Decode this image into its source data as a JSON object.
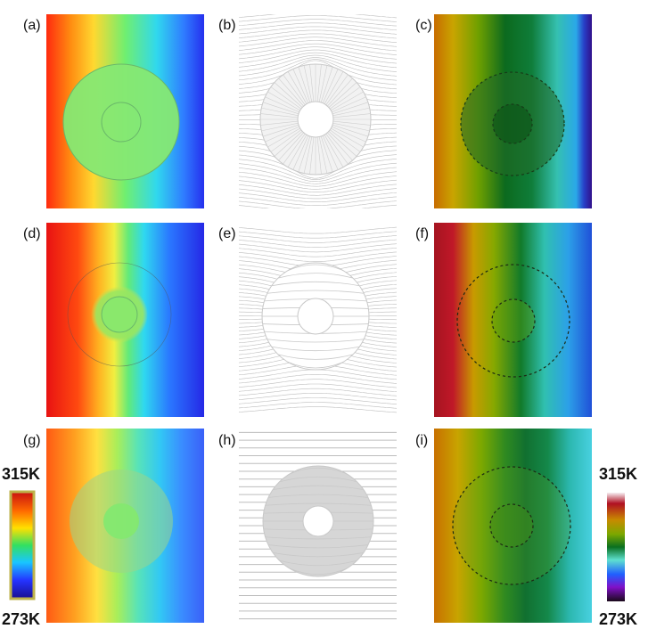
{
  "panels": {
    "a": {
      "label": "(a)"
    },
    "b": {
      "label": "(b)"
    },
    "c": {
      "label": "(c)"
    },
    "d": {
      "label": "(d)"
    },
    "e": {
      "label": "(e)"
    },
    "f": {
      "label": "(f)"
    },
    "g": {
      "label": "(g)"
    },
    "h": {
      "label": "(h)"
    },
    "i": {
      "label": "(i)"
    }
  },
  "colorbars": {
    "left": {
      "max": "315K",
      "min": "273K",
      "colormap": "jet",
      "colors": [
        "#c81010",
        "#ff6a00",
        "#ffe000",
        "#33e060",
        "#19c6ff",
        "#2433ff",
        "#1a0f8f"
      ],
      "frame_color": "#bdb24a"
    },
    "right": {
      "max": "315K",
      "min": "273K",
      "colormap": "thermal-camera",
      "colors": [
        "#f6eef2",
        "#b01022",
        "#c88a00",
        "#7ea800",
        "#0a7020",
        "#5ee0d0",
        "#2060ff",
        "#8010c8",
        "#1a0a1a"
      ]
    }
  }
}
